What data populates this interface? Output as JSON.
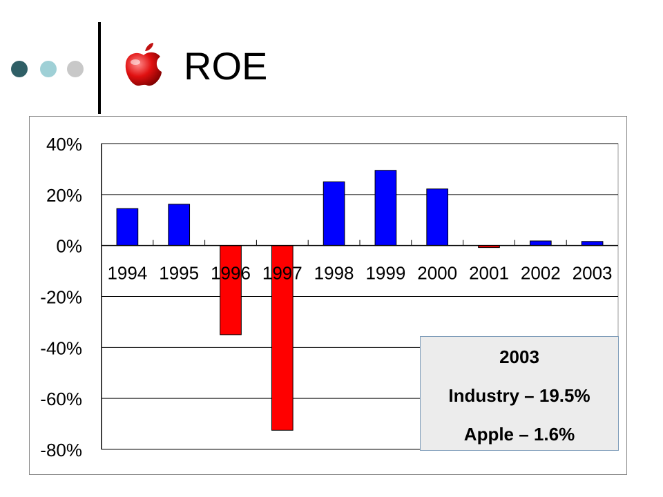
{
  "header": {
    "title": "ROE",
    "logo_icon": "apple-logo-icon",
    "dot_colors": [
      "#2f5f66",
      "#9fd0d6",
      "#c8c8c8"
    ]
  },
  "chart_data": {
    "type": "bar",
    "categories": [
      "1994",
      "1995",
      "1996",
      "1997",
      "1998",
      "1999",
      "2000",
      "2001",
      "2002",
      "2003"
    ],
    "values": [
      14.5,
      16.2,
      -35.0,
      -72.5,
      25.0,
      29.5,
      22.2,
      -0.8,
      1.8,
      1.6
    ],
    "title": "",
    "xlabel": "",
    "ylabel": "",
    "ylim": [
      -80,
      40
    ],
    "yticks": [
      40,
      20,
      0,
      -20,
      -40,
      -60,
      -80
    ],
    "ytick_labels": [
      "40%",
      "20%",
      "0%",
      "-20%",
      "-40%",
      "-60%",
      "-80%"
    ],
    "grid": true,
    "positive_color": "#0000ff",
    "negative_color": "#ff0000"
  },
  "annotation": {
    "year": "2003",
    "industry": "Industry – 19.5%",
    "apple": "Apple – 1.6%"
  }
}
